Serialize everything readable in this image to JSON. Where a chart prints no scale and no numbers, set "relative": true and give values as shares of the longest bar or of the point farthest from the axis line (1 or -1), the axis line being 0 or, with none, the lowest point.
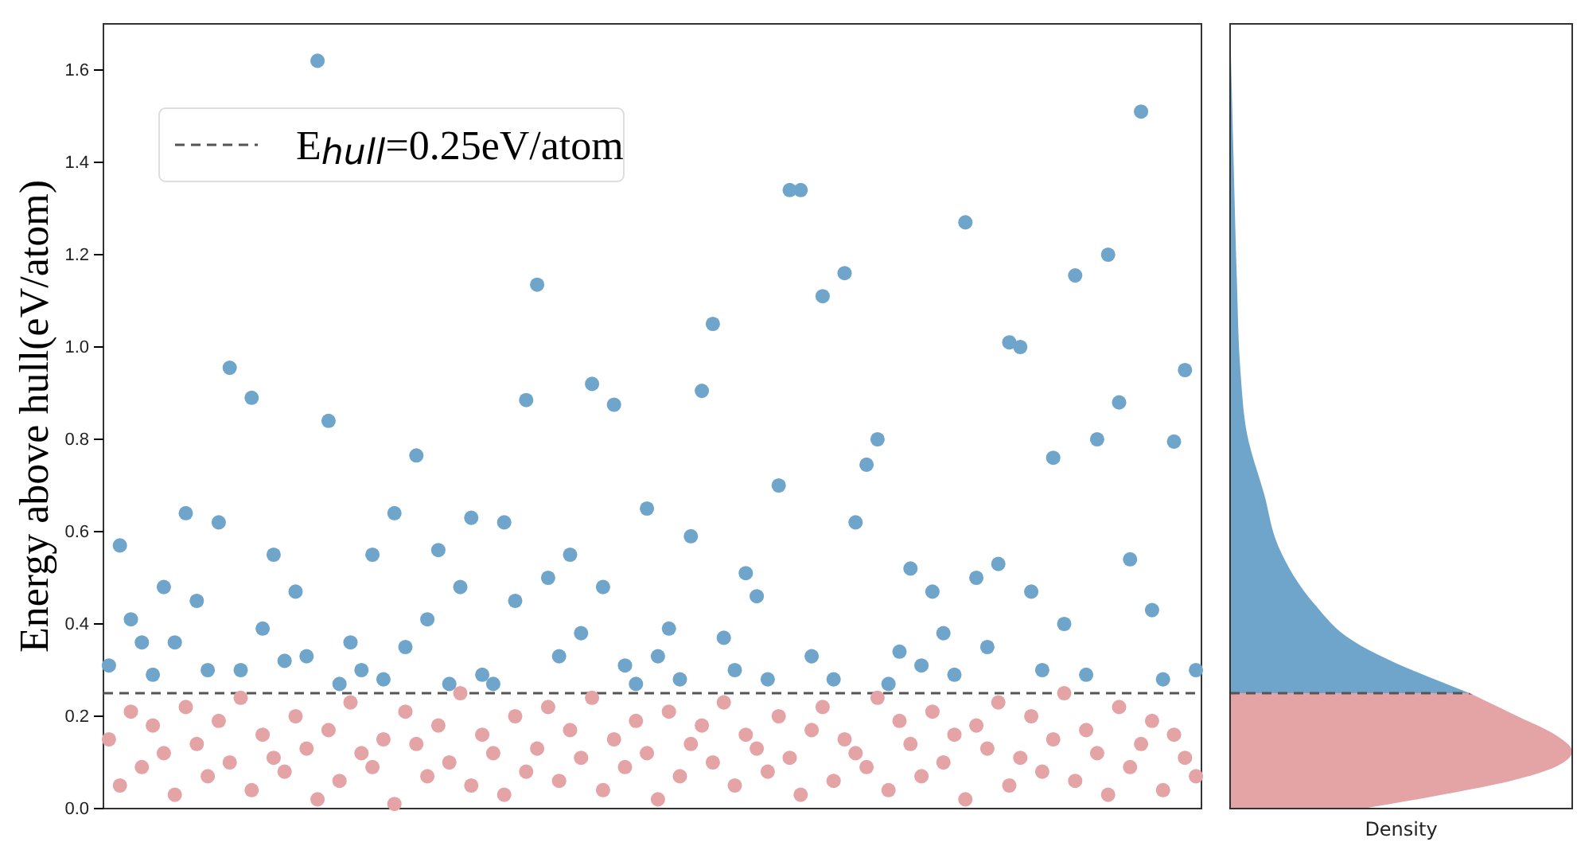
{
  "chart_data": [
    {
      "type": "scatter",
      "ylabel": "Energy above hull(eV/atom)",
      "categories": [
        null,
        null,
        null,
        null,
        null,
        null,
        null,
        null,
        null,
        null,
        null,
        null,
        null,
        null,
        null,
        null,
        null,
        null,
        null,
        null,
        null,
        null,
        null,
        null,
        null,
        null,
        null,
        null,
        null,
        null,
        null,
        null,
        null,
        null,
        null,
        null,
        null,
        null,
        null,
        null,
        null,
        null,
        null,
        null,
        null,
        null,
        null,
        null,
        null,
        null,
        null,
        null,
        null,
        null,
        null,
        null,
        null,
        null,
        null,
        null,
        null,
        null,
        null,
        null,
        null,
        null,
        null,
        null,
        null,
        null,
        null,
        null,
        null,
        null,
        null,
        null,
        null,
        null,
        null,
        null,
        null,
        null,
        null,
        null,
        null,
        null,
        null,
        null,
        null,
        null,
        null,
        null,
        null,
        null,
        null,
        null,
        null,
        null,
        null,
        null
      ],
      "ylim": [
        0,
        1.7
      ],
      "yticks": [
        {
          "value": 0,
          "label": "0.0"
        },
        0.2,
        0.4,
        0.6,
        0.8,
        {
          "value": 1,
          "label": "1.0"
        },
        1.2,
        1.4,
        1.6
      ],
      "tick_labels": "y",
      "marker": "circle",
      "legend": "top left",
      "series": [
        {
          "color": "#e4a3a5",
          "values": [
            0.15,
            0.05,
            0.21,
            0.09,
            0.18,
            0.12,
            0.03,
            0.22,
            0.14,
            0.07,
            0.19,
            0.1,
            0.24,
            0.04,
            0.16,
            0.11,
            0.08,
            0.2,
            0.13,
            0.02,
            0.17,
            0.06,
            0.23,
            0.12,
            0.09,
            0.15,
            0.01,
            0.21,
            0.14,
            0.07,
            0.18,
            0.1,
            0.25,
            0.05,
            0.16,
            0.12,
            0.03,
            0.2,
            0.08,
            0.13,
            0.22,
            0.06,
            0.17,
            0.11,
            0.24,
            0.04,
            0.15,
            0.09,
            0.19,
            0.12,
            0.02,
            0.21,
            0.07,
            0.14,
            0.18,
            0.1,
            0.23,
            0.05,
            0.16,
            0.13,
            0.08,
            0.2,
            0.11,
            0.03,
            0.17,
            0.22,
            0.06,
            0.15,
            0.12,
            0.09,
            0.24,
            0.04,
            0.19,
            0.14,
            0.07,
            0.21,
            0.1,
            0.16,
            0.02,
            0.18,
            0.13,
            0.23,
            0.05,
            0.11,
            0.2,
            0.08,
            0.15,
            0.25,
            0.06,
            0.17,
            0.12,
            0.03,
            0.22,
            0.09,
            0.14,
            0.19,
            0.04,
            0.16,
            0.11,
            0.07
          ]
        },
        {
          "color": "#6fa5ca",
          "values": [
            0.31,
            0.57,
            0.41,
            0.36,
            0.29,
            0.48,
            0.36,
            0.64,
            0.45,
            0.3,
            0.62,
            0.955,
            0.3,
            0.89,
            0.39,
            0.55,
            0.32,
            0.47,
            0.33,
            1.62,
            0.84,
            0.27,
            0.36,
            0.3,
            0.55,
            0.28,
            0.64,
            0.35,
            0.765,
            0.41,
            0.56,
            0.27,
            0.48,
            0.63,
            0.29,
            0.27,
            0.62,
            0.45,
            0.885,
            1.135,
            0.5,
            0.33,
            0.55,
            0.38,
            0.92,
            0.48,
            0.875,
            0.31,
            0.27,
            0.65,
            0.33,
            0.39,
            0.28,
            0.59,
            0.905,
            1.05,
            0.37,
            0.3,
            0.51,
            0.46,
            0.28,
            0.7,
            1.34,
            1.34,
            0.33,
            1.11,
            0.28,
            1.16,
            0.62,
            0.745,
            0.8,
            0.27,
            0.34,
            0.52,
            0.31,
            0.47,
            0.38,
            0.29,
            1.27,
            0.5,
            0.35,
            0.53,
            1.01,
            1.0,
            0.47,
            0.3,
            0.76,
            0.4,
            1.155,
            0.29,
            0.8,
            1.2,
            0.88,
            0.54,
            1.51,
            0.43,
            0.28,
            0.795,
            0.95,
            0.3
          ]
        }
      ],
      "ref_lines": [
        {
          "axis": "y",
          "value": 0.25,
          "label": "E$_{hull}$=0.25eV/atom",
          "color": "#555555",
          "line_style": "dashed"
        }
      ]
    },
    {
      "type": "area",
      "orientation": "horizontal",
      "relative": true,
      "xlabel": "Density",
      "ylim": [
        0,
        1.7
      ],
      "tick_labels": false,
      "series": [
        {
          "color": "#e4a3a5",
          "x": [
            0,
            0.03,
            0.06,
            0.09,
            0.124,
            0.16,
            0.2,
            0.25
          ],
          "values": [
            0.39,
            0.62,
            0.82,
            0.95,
            1,
            0.95,
            0.84,
            0.7
          ]
        },
        {
          "color": "#6fa5ca",
          "x": [
            0.25,
            0.373,
            0.44,
            0.57,
            0.68,
            0.81,
            0.95,
            1.14,
            1.41,
            1.7
          ],
          "values": [
            0.7,
            0.34,
            0.25,
            0.14,
            0.1,
            0.05,
            0.03,
            0.02,
            0.01,
            0
          ]
        }
      ],
      "ref_lines": [
        {
          "axis": "y",
          "value": 0.25,
          "color": "#555555",
          "line_style": "dashed"
        }
      ]
    }
  ]
}
